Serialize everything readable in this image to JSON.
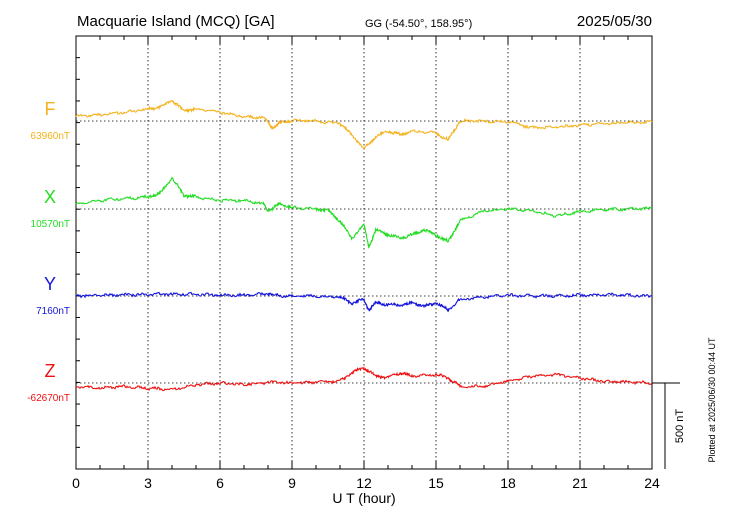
{
  "header": {
    "station": "Macquarie Island (MCQ)  [GA]",
    "coords": "GG (-54.50°, 158.95°)",
    "date": "2025/05/30"
  },
  "footer": {
    "plotted": "Plotted at 2025/06/30 00:44 UT"
  },
  "chart_data": {
    "type": "line",
    "xlabel": "U T (hour)",
    "xlim": [
      0,
      24
    ],
    "xticks": [
      "0",
      "3",
      "6",
      "9",
      "12",
      "15",
      "18",
      "21",
      "24"
    ],
    "grid": true,
    "scale_bar": {
      "label": "500 nT",
      "value_nT": 500
    },
    "series": [
      {
        "name": "F",
        "baseline_label": "63960nT",
        "baseline_nT": 63960,
        "color": "#f5b21e",
        "points": [
          [
            0,
            63990
          ],
          [
            1,
            63995
          ],
          [
            2,
            64010
          ],
          [
            3,
            64030
          ],
          [
            3.5,
            64040
          ],
          [
            4,
            64080
          ],
          [
            4.5,
            64020
          ],
          [
            5,
            64030
          ],
          [
            6,
            64010
          ],
          [
            7,
            63985
          ],
          [
            7.8,
            63980
          ],
          [
            8.2,
            63920
          ],
          [
            8.5,
            63950
          ],
          [
            9,
            63965
          ],
          [
            10,
            63960
          ],
          [
            11,
            63945
          ],
          [
            11.5,
            63880
          ],
          [
            12,
            63800
          ],
          [
            12.5,
            63870
          ],
          [
            13,
            63900
          ],
          [
            13.5,
            63880
          ],
          [
            14,
            63900
          ],
          [
            15,
            63890
          ],
          [
            15.5,
            63850
          ],
          [
            16,
            63960
          ],
          [
            17,
            63960
          ],
          [
            18,
            63955
          ],
          [
            19,
            63920
          ],
          [
            20,
            63925
          ],
          [
            21,
            63935
          ],
          [
            22,
            63945
          ],
          [
            23,
            63950
          ],
          [
            24,
            63955
          ]
        ]
      },
      {
        "name": "X",
        "baseline_label": "10570nT",
        "baseline_nT": 10570,
        "color": "#22dd22",
        "points": [
          [
            0,
            10600
          ],
          [
            1,
            10620
          ],
          [
            2,
            10630
          ],
          [
            3,
            10640
          ],
          [
            3.5,
            10660
          ],
          [
            4,
            10750
          ],
          [
            4.5,
            10650
          ],
          [
            5,
            10640
          ],
          [
            6,
            10620
          ],
          [
            7,
            10620
          ],
          [
            7.8,
            10600
          ],
          [
            8,
            10560
          ],
          [
            8.5,
            10600
          ],
          [
            9,
            10580
          ],
          [
            10,
            10570
          ],
          [
            10.5,
            10560
          ],
          [
            11,
            10500
          ],
          [
            11.5,
            10400
          ],
          [
            12,
            10480
          ],
          [
            12.2,
            10350
          ],
          [
            12.5,
            10450
          ],
          [
            13,
            10420
          ],
          [
            13.5,
            10400
          ],
          [
            14,
            10420
          ],
          [
            14.5,
            10450
          ],
          [
            15,
            10420
          ],
          [
            15.5,
            10380
          ],
          [
            16,
            10500
          ],
          [
            17,
            10560
          ],
          [
            18,
            10570
          ],
          [
            19,
            10560
          ],
          [
            20,
            10530
          ],
          [
            21,
            10555
          ],
          [
            22,
            10565
          ],
          [
            23,
            10570
          ],
          [
            24,
            10575
          ]
        ]
      },
      {
        "name": "Y",
        "baseline_label": "7160nT",
        "baseline_nT": 7160,
        "color": "#1515dd",
        "points": [
          [
            0,
            7160
          ],
          [
            1,
            7165
          ],
          [
            2,
            7165
          ],
          [
            3,
            7170
          ],
          [
            4,
            7172
          ],
          [
            5,
            7170
          ],
          [
            6,
            7165
          ],
          [
            7,
            7165
          ],
          [
            8,
            7175
          ],
          [
            8.5,
            7160
          ],
          [
            9,
            7160
          ],
          [
            10,
            7160
          ],
          [
            11,
            7155
          ],
          [
            11.5,
            7120
          ],
          [
            12,
            7140
          ],
          [
            12.2,
            7080
          ],
          [
            12.5,
            7120
          ],
          [
            13,
            7110
          ],
          [
            13.5,
            7105
          ],
          [
            14,
            7120
          ],
          [
            14.5,
            7100
          ],
          [
            15,
            7120
          ],
          [
            15.5,
            7080
          ],
          [
            16,
            7140
          ],
          [
            17,
            7155
          ],
          [
            18,
            7165
          ],
          [
            19,
            7160
          ],
          [
            20,
            7160
          ],
          [
            21,
            7165
          ],
          [
            22,
            7168
          ],
          [
            23,
            7165
          ],
          [
            24,
            7160
          ]
        ]
      },
      {
        "name": "Z",
        "baseline_label": "-62670nT",
        "baseline_nT": -62670,
        "color": "#ee1111",
        "points": [
          [
            0,
            -62690
          ],
          [
            1,
            -62700
          ],
          [
            2,
            -62690
          ],
          [
            3,
            -62700
          ],
          [
            4,
            -62710
          ],
          [
            5,
            -62680
          ],
          [
            6,
            -62670
          ],
          [
            7,
            -62680
          ],
          [
            8,
            -62665
          ],
          [
            9,
            -62670
          ],
          [
            10,
            -62665
          ],
          [
            11,
            -62660
          ],
          [
            11.5,
            -62610
          ],
          [
            12,
            -62580
          ],
          [
            12.5,
            -62630
          ],
          [
            13,
            -62640
          ],
          [
            13.5,
            -62610
          ],
          [
            14,
            -62630
          ],
          [
            15,
            -62620
          ],
          [
            15.5,
            -62640
          ],
          [
            16,
            -62690
          ],
          [
            17,
            -62690
          ],
          [
            18,
            -62660
          ],
          [
            19,
            -62630
          ],
          [
            20,
            -62620
          ],
          [
            21,
            -62640
          ],
          [
            22,
            -62660
          ],
          [
            23,
            -62665
          ],
          [
            24,
            -62670
          ]
        ]
      }
    ]
  }
}
